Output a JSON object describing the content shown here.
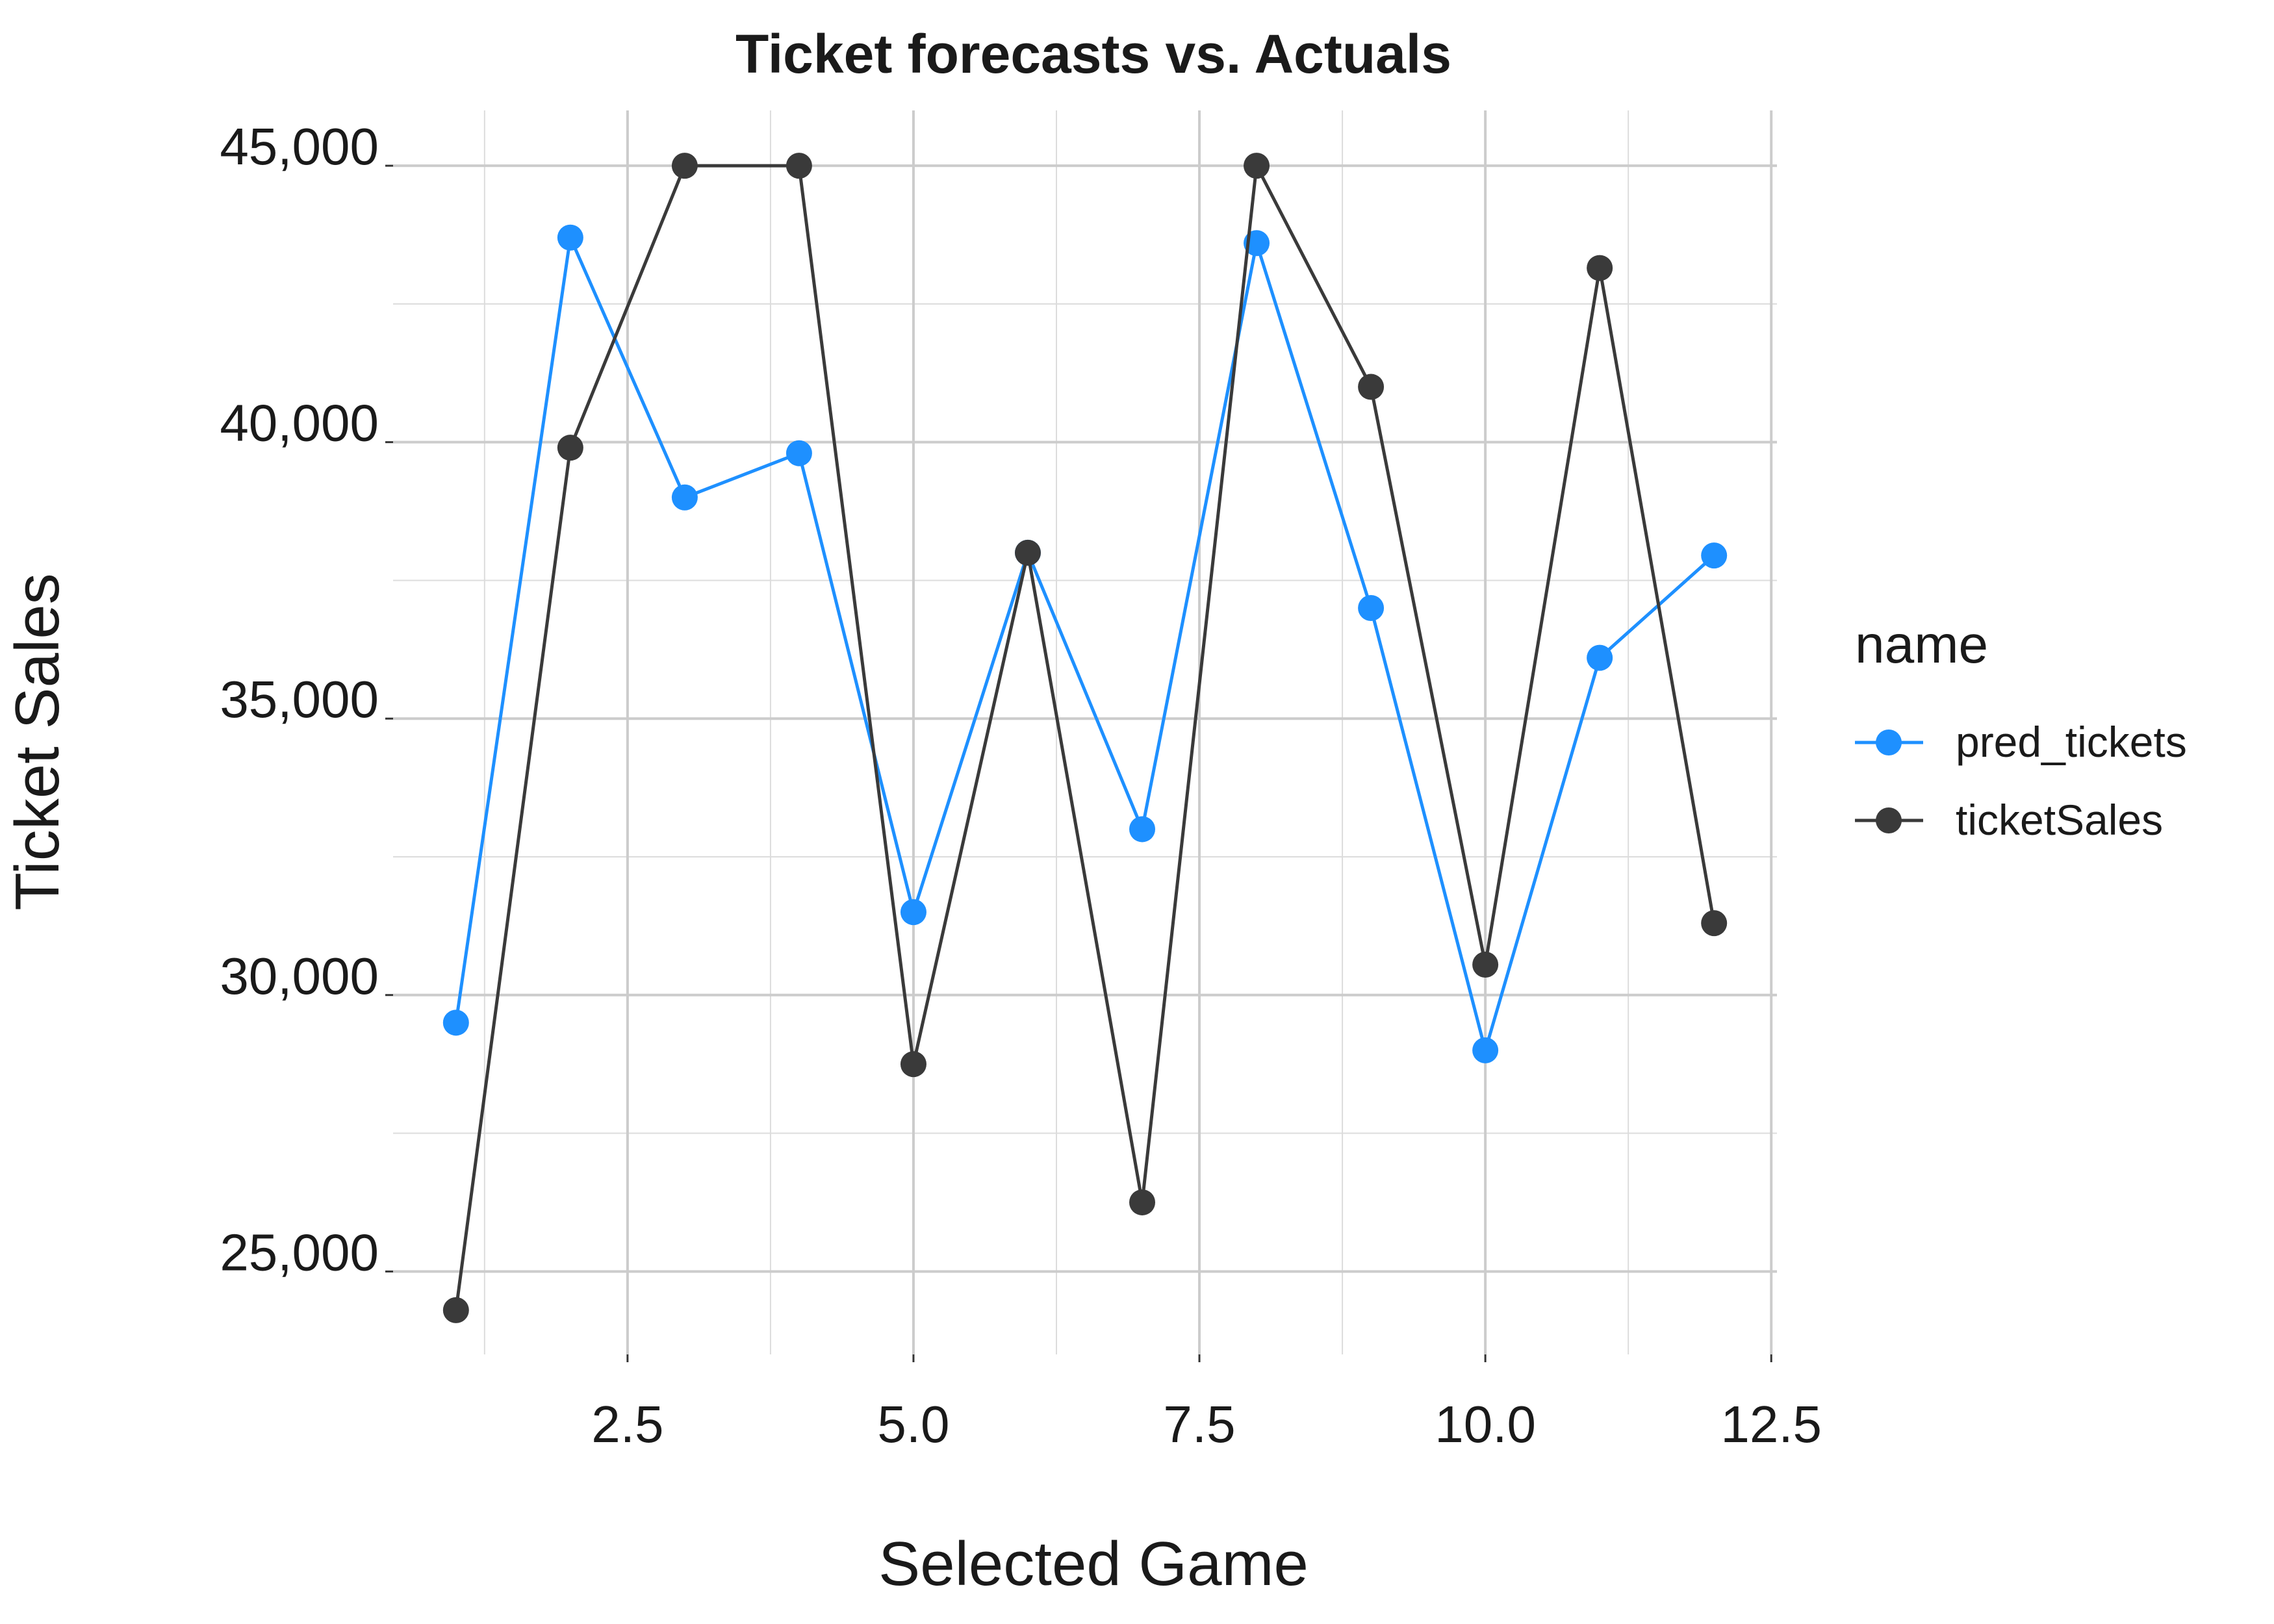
{
  "chart_data": {
    "type": "line",
    "title": "Ticket forecasts vs. Actuals",
    "xlabel": "Selected Game",
    "ylabel": "Ticket Sales",
    "xlim": [
      0.45,
      12.55
    ],
    "ylim": [
      23500,
      46000
    ],
    "x_ticks": [
      2.5,
      5.0,
      7.5,
      10.0,
      12.5
    ],
    "x_tick_labels": [
      "2.5",
      "5.0",
      "7.5",
      "10.0",
      "12.5"
    ],
    "y_ticks": [
      25000,
      30000,
      35000,
      40000,
      45000
    ],
    "y_tick_labels": [
      "25,000",
      "30,000",
      "35,000",
      "40,000",
      "45,000"
    ],
    "grid": true,
    "legend": {
      "title": "name",
      "position": "right"
    },
    "x": [
      1,
      2,
      3,
      4,
      5,
      6,
      7,
      8,
      9,
      10,
      11,
      12
    ],
    "series": [
      {
        "name": "pred_tickets",
        "color": "#1e90ff",
        "values": [
          29500,
          43700,
          39000,
          39800,
          31500,
          38000,
          33000,
          43600,
          37000,
          29000,
          36100,
          37950
        ]
      },
      {
        "name": "ticketSales",
        "color": "#3a3a3a",
        "values": [
          24300,
          39900,
          45000,
          45000,
          28750,
          38000,
          26250,
          45000,
          41000,
          30550,
          43150,
          31300
        ]
      }
    ]
  }
}
